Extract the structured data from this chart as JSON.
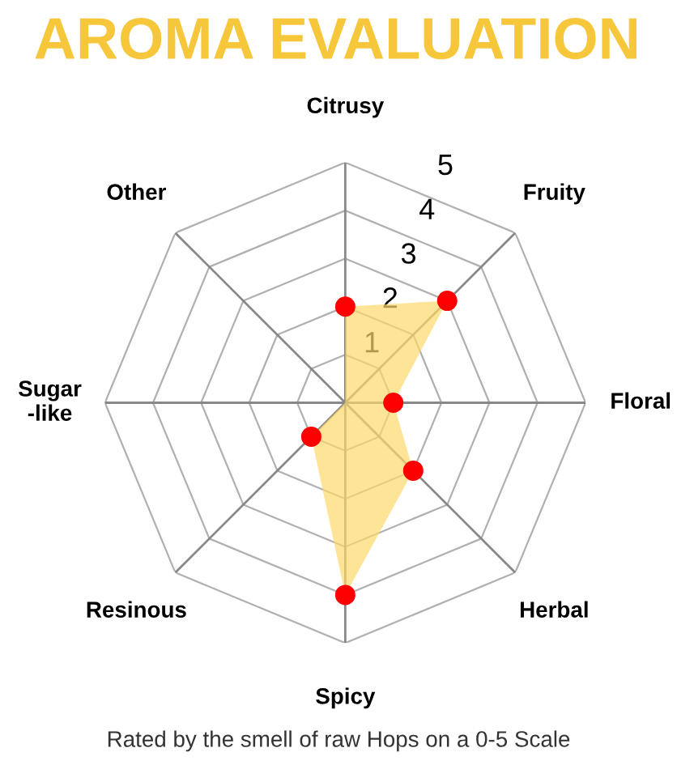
{
  "chart_data": {
    "type": "radar",
    "title": "AROMA EVALUATION",
    "categories": [
      "Citrusy",
      "Fruity",
      "Floral",
      "Herbal",
      "Spicy",
      "Resinous",
      "Sugar\n-like",
      "Other"
    ],
    "series": [
      {
        "color": "#fcd86a",
        "values": [
          2,
          3,
          1,
          2,
          4,
          1,
          0,
          0
        ]
      }
    ],
    "ylim": [
      0,
      5
    ],
    "yticks": [
      1,
      2,
      3,
      4,
      5
    ],
    "grid": true,
    "marker": "circle",
    "annotations": [
      "Rated by the smell of raw Hops on a 0-5 Scale"
    ]
  }
}
